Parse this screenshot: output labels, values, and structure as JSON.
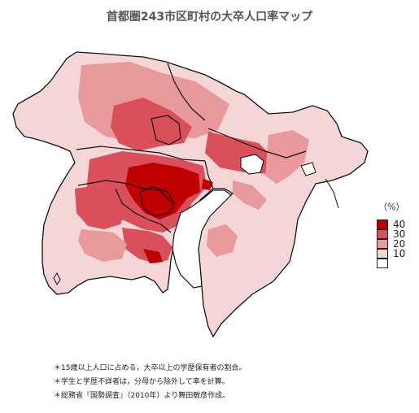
{
  "title": "首都圏243市区町村の大卒人口率マップ",
  "legend": {
    "unit": "（%）",
    "bins": [
      {
        "label": "40",
        "color": "#c00000"
      },
      {
        "label": "30",
        "color": "#d9505a"
      },
      {
        "label": "20",
        "color": "#e8999c"
      },
      {
        "label": "10",
        "color": "#f5d6d6"
      },
      {
        "label": "",
        "color": "#ffffff"
      }
    ]
  },
  "notes": [
    "＊15歳以上人口に占める，大卒以上の学歴保有者の割合。",
    "＊学生と学歴不詳者は，分母から除外して率を計算。",
    "＊総務省『国勢調査』（2010年）より舞田敏彦作成。"
  ]
}
